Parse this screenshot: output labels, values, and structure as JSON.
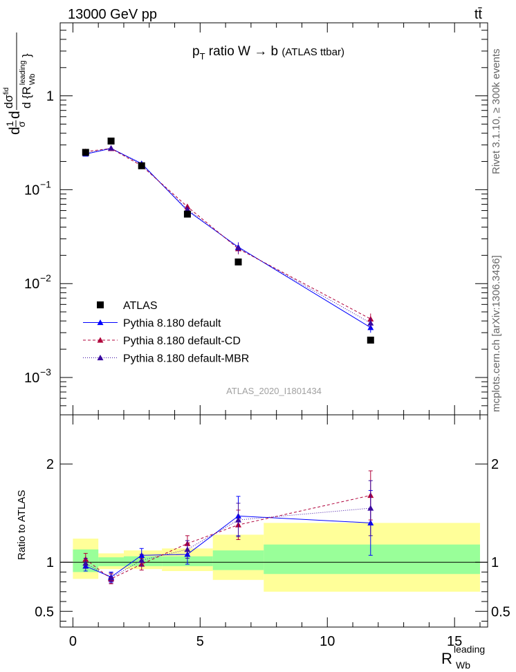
{
  "header": {
    "left": "13000 GeV pp",
    "right": "tt̄"
  },
  "side_labels": {
    "top": "Rivet 3.1.10, ≥ 300k events",
    "bottom": "mcplots.cern.ch [arXiv:1306.3436]"
  },
  "chart_data": [
    {
      "type": "scatter",
      "title": "pT ratio W → b (ATLAS ttbar)",
      "xlabel": "R_Wb^leading",
      "ylabel": "(1/σ) dσ^fid / d{R_Wb^leading}",
      "xlim": [
        -0.5,
        16.3
      ],
      "ylim": [
        0.0004,
        6
      ],
      "yscale": "log",
      "yticks": [
        "10^-3",
        "10^-2",
        "10^-1",
        "1"
      ],
      "watermark": "ATLAS_2020_I1801434",
      "legend_position": "lower-left",
      "series": [
        {
          "name": "ATLAS",
          "color": "#000000",
          "x": [
            0.5,
            1.5,
            2.7,
            4.5,
            6.5,
            11.7
          ],
          "y": [
            0.25,
            0.33,
            0.18,
            0.055,
            0.017,
            0.0025
          ]
        },
        {
          "name": "Pythia 8.180 default",
          "color": "#0000ff",
          "x": [
            0.5,
            1.5,
            2.7,
            4.5,
            6.5,
            11.7
          ],
          "y": [
            0.24,
            0.275,
            0.19,
            0.06,
            0.0245,
            0.0034
          ],
          "err": [
            0.01,
            0.01,
            0.008,
            0.003,
            0.003,
            0.0004
          ]
        },
        {
          "name": "Pythia 8.180 default-CD",
          "color": "#b0003a",
          "x": [
            0.5,
            1.5,
            2.7,
            4.5,
            6.5,
            11.7
          ],
          "y": [
            0.255,
            0.275,
            0.18,
            0.066,
            0.0235,
            0.0042
          ],
          "err": [
            0.01,
            0.01,
            0.008,
            0.003,
            0.003,
            0.0006
          ]
        },
        {
          "name": "Pythia 8.180 default-MBR",
          "color": "#3a0aa0",
          "x": [
            0.5,
            1.5,
            2.7,
            4.5,
            6.5,
            11.7
          ],
          "y": [
            0.245,
            0.278,
            0.185,
            0.062,
            0.024,
            0.0038
          ],
          "err": [
            0.01,
            0.01,
            0.008,
            0.003,
            0.003,
            0.0005
          ]
        }
      ]
    },
    {
      "type": "scatter",
      "ylabel": "Ratio to ATLAS",
      "xlim": [
        -0.5,
        16.3
      ],
      "ylim": [
        0.34,
        2.5
      ],
      "xticks": [
        0,
        5,
        10,
        15
      ],
      "yticks": [
        0.5,
        1,
        2
      ],
      "bands": {
        "edges": [
          0,
          1,
          2,
          3.5,
          5.5,
          7.5,
          16
        ],
        "green_lo": [
          0.9,
          0.96,
          0.96,
          0.96,
          0.92,
          0.88
        ],
        "green_hi": [
          1.13,
          1.05,
          1.06,
          1.06,
          1.12,
          1.18
        ],
        "yellow_lo": [
          0.83,
          0.93,
          0.93,
          0.91,
          0.82,
          0.7
        ],
        "yellow_hi": [
          1.24,
          1.09,
          1.12,
          1.14,
          1.28,
          1.4
        ],
        "green_color": "#99ff99",
        "yellow_color": "#ffff99"
      },
      "series": [
        {
          "name": "Pythia 8.180 default",
          "color": "#0000ff",
          "x": [
            0.5,
            1.5,
            2.7,
            4.5,
            6.5,
            11.7
          ],
          "y": [
            0.96,
            0.85,
            1.07,
            1.08,
            1.47,
            1.4
          ],
          "err": [
            0.05,
            0.05,
            0.07,
            0.1,
            0.2,
            0.33
          ]
        },
        {
          "name": "Pythia 8.180 default-CD",
          "color": "#b0003a",
          "x": [
            0.5,
            1.5,
            2.7,
            4.5,
            6.5,
            11.7
          ],
          "y": [
            1.03,
            0.83,
            0.98,
            1.19,
            1.38,
            1.68
          ],
          "err": [
            0.06,
            0.05,
            0.06,
            0.08,
            0.15,
            0.25
          ]
        },
        {
          "name": "Pythia 8.180 default-MBR",
          "color": "#3a0aa0",
          "x": [
            0.5,
            1.5,
            2.7,
            4.5,
            6.5,
            11.7
          ],
          "y": [
            0.99,
            0.84,
            1.02,
            1.13,
            1.43,
            1.55
          ],
          "err": [
            0.05,
            0.05,
            0.06,
            0.09,
            0.17,
            0.28
          ]
        }
      ]
    }
  ]
}
